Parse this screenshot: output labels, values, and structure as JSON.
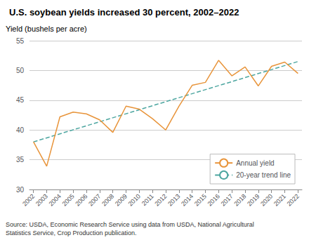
{
  "chart_data": {
    "type": "line",
    "title": "U.S. soybean yields increased 30 percent, 2002–2022",
    "ylabel": "Yield (bushels per acre)",
    "source": "Source: USDA, Economic Research Service using data from USDA, National Agricultural\nStatistics Service, Crop Production publication.",
    "x": [
      2002,
      2003,
      2004,
      2005,
      2006,
      2007,
      2008,
      2009,
      2010,
      2011,
      2012,
      2013,
      2014,
      2015,
      2016,
      2017,
      2018,
      2019,
      2020,
      2021,
      2022
    ],
    "series": [
      {
        "name": "Annual yield",
        "color": "#E8943A",
        "line_style": "solid",
        "values": [
          38.0,
          33.9,
          42.2,
          43.0,
          42.7,
          41.7,
          39.6,
          44.0,
          43.5,
          41.9,
          40.0,
          44.0,
          47.5,
          48.0,
          51.7,
          49.1,
          50.6,
          47.4,
          50.7,
          51.4,
          49.5
        ]
      },
      {
        "name": "20-year trend line",
        "color": "#4DA6A0",
        "line_style": "dashed",
        "x": [
          2002,
          2022
        ],
        "values": [
          38.0,
          51.5
        ]
      }
    ],
    "xlim": [
      2001.7,
      2022.3
    ],
    "xticks": [
      2002,
      2003,
      2004,
      2005,
      2006,
      2007,
      2008,
      2009,
      2010,
      2011,
      2012,
      2013,
      2014,
      2015,
      2016,
      2017,
      2018,
      2019,
      2020,
      2021,
      2022
    ],
    "ylim": [
      30,
      55
    ],
    "yticks": [
      30,
      35,
      40,
      45,
      50,
      55
    ],
    "grid": true,
    "legend": "lower right"
  }
}
